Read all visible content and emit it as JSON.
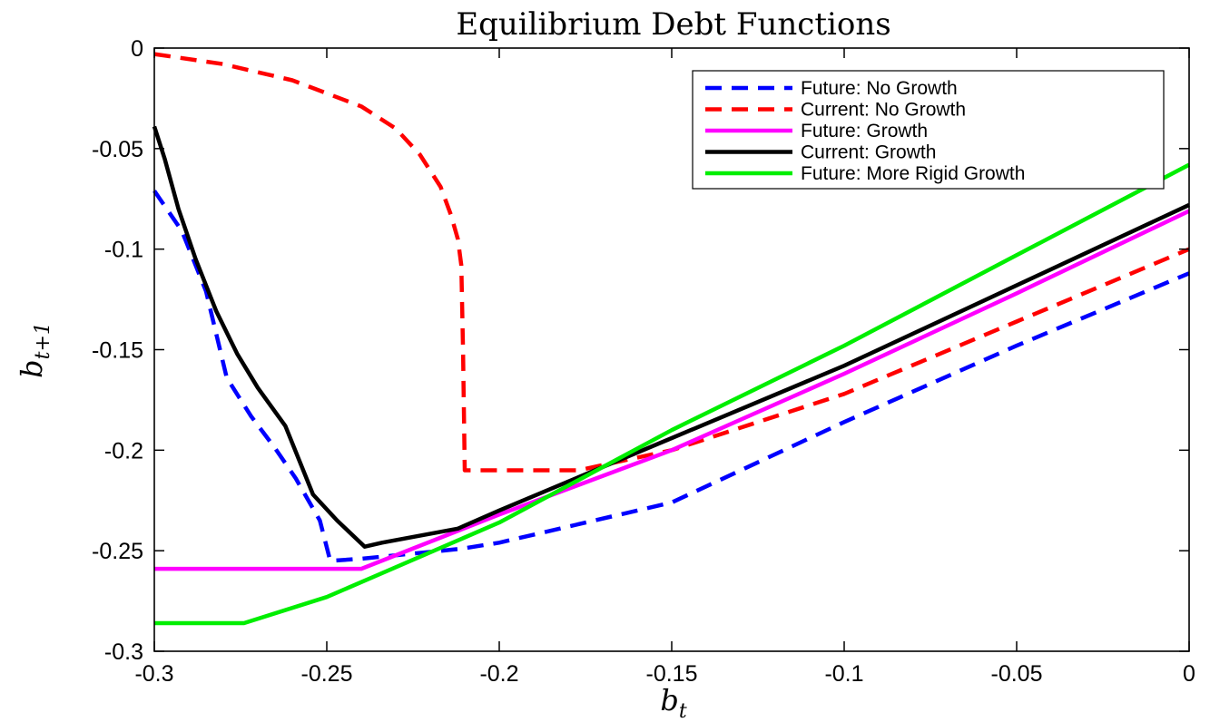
{
  "chart_data": {
    "type": "line",
    "title": "Equilibrium Debt Functions",
    "xlabel": "b",
    "xlabel_sub": "t",
    "ylabel": "b",
    "ylabel_sub": "t+1",
    "xlim": [
      -0.3,
      0
    ],
    "ylim": [
      -0.3,
      0
    ],
    "xticks": [
      -0.3,
      -0.25,
      -0.2,
      -0.15,
      -0.1,
      -0.05,
      0
    ],
    "xtick_labels": [
      "-0.3",
      "-0.25",
      "-0.2",
      "-0.15",
      "-0.1",
      "-0.05",
      "0"
    ],
    "yticks": [
      0,
      -0.05,
      -0.1,
      -0.15,
      -0.2,
      -0.25,
      -0.3
    ],
    "ytick_labels": [
      "0",
      "-0.05",
      "-0.1",
      "-0.15",
      "-0.2",
      "-0.25",
      "-0.3"
    ],
    "grid": false,
    "legend_position": "top-right",
    "series": [
      {
        "name": "Future: No Growth",
        "color": "#0000ff",
        "dash": "dashed",
        "points": [
          [
            -0.3,
            -0.071
          ],
          [
            -0.292,
            -0.091
          ],
          [
            -0.285,
            -0.121
          ],
          [
            -0.279,
            -0.164
          ],
          [
            -0.272,
            -0.183
          ],
          [
            -0.265,
            -0.199
          ],
          [
            -0.259,
            -0.214
          ],
          [
            -0.252,
            -0.235
          ],
          [
            -0.249,
            -0.255
          ],
          [
            -0.24,
            -0.254
          ],
          [
            -0.211,
            -0.249
          ],
          [
            -0.2,
            -0.246
          ],
          [
            -0.15,
            -0.226
          ],
          [
            -0.1,
            -0.186
          ],
          [
            -0.05,
            -0.148
          ],
          [
            0,
            -0.112
          ]
        ]
      },
      {
        "name": "Current: No Growth",
        "color": "#ff0000",
        "dash": "dashed",
        "points": [
          [
            -0.3,
            -0.003
          ],
          [
            -0.28,
            -0.008
          ],
          [
            -0.26,
            -0.016
          ],
          [
            -0.24,
            -0.029
          ],
          [
            -0.23,
            -0.04
          ],
          [
            -0.223,
            -0.053
          ],
          [
            -0.217,
            -0.069
          ],
          [
            -0.214,
            -0.083
          ],
          [
            -0.212,
            -0.095
          ],
          [
            -0.211,
            -0.108
          ],
          [
            -0.2105,
            -0.15
          ],
          [
            -0.21,
            -0.21
          ],
          [
            -0.2,
            -0.21
          ],
          [
            -0.177,
            -0.21
          ],
          [
            -0.15,
            -0.2
          ],
          [
            -0.1,
            -0.172
          ],
          [
            -0.05,
            -0.136
          ],
          [
            0,
            -0.1
          ]
        ]
      },
      {
        "name": "Future: Growth",
        "color": "#ff00ff",
        "dash": "solid",
        "points": [
          [
            -0.3,
            -0.259
          ],
          [
            -0.24,
            -0.259
          ],
          [
            -0.2,
            -0.232
          ],
          [
            -0.15,
            -0.2
          ],
          [
            -0.1,
            -0.162
          ],
          [
            -0.05,
            -0.122
          ],
          [
            0,
            -0.081
          ]
        ]
      },
      {
        "name": "Current: Growth",
        "color": "#000000",
        "dash": "solid",
        "points": [
          [
            -0.3,
            -0.039
          ],
          [
            -0.297,
            -0.055
          ],
          [
            -0.293,
            -0.08
          ],
          [
            -0.288,
            -0.105
          ],
          [
            -0.282,
            -0.131
          ],
          [
            -0.276,
            -0.152
          ],
          [
            -0.27,
            -0.169
          ],
          [
            -0.262,
            -0.188
          ],
          [
            -0.254,
            -0.222
          ],
          [
            -0.247,
            -0.235
          ],
          [
            -0.239,
            -0.248
          ],
          [
            -0.234,
            -0.246
          ],
          [
            -0.212,
            -0.239
          ],
          [
            -0.2,
            -0.23
          ],
          [
            -0.15,
            -0.194
          ],
          [
            -0.1,
            -0.158
          ],
          [
            -0.05,
            -0.118
          ],
          [
            0,
            -0.078
          ]
        ]
      },
      {
        "name": "Future: More Rigid Growth",
        "color": "#00ee00",
        "dash": "solid",
        "points": [
          [
            -0.3,
            -0.286
          ],
          [
            -0.274,
            -0.286
          ],
          [
            -0.25,
            -0.273
          ],
          [
            -0.2,
            -0.236
          ],
          [
            -0.15,
            -0.19
          ],
          [
            -0.1,
            -0.148
          ],
          [
            -0.05,
            -0.103
          ],
          [
            0,
            -0.058
          ]
        ]
      }
    ]
  }
}
